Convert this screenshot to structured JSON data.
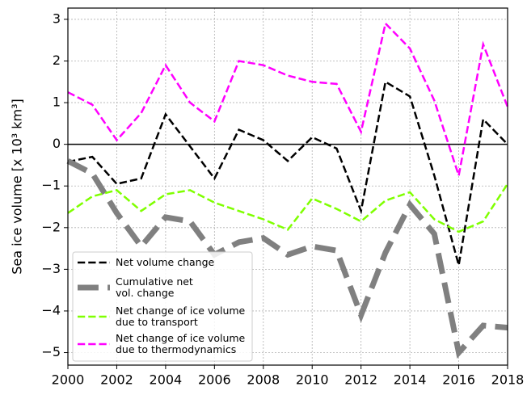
{
  "chart_data": {
    "type": "line",
    "y_label": "Sea ice volume [x 10³ km³]",
    "x": [
      2000,
      2001,
      2002,
      2003,
      2004,
      2005,
      2006,
      2007,
      2008,
      2009,
      2010,
      2011,
      2012,
      2013,
      2014,
      2015,
      2016,
      2017,
      2018
    ],
    "series": [
      {
        "name": "Net volume change",
        "color": "#000000",
        "linestyle": "dashed",
        "linewidth": 2.5,
        "values": [
          -0.42,
          -0.3,
          -0.95,
          -0.82,
          0.72,
          -0.05,
          -0.82,
          0.35,
          0.1,
          -0.4,
          0.17,
          -0.1,
          -1.6,
          1.5,
          1.15,
          -0.75,
          -2.9,
          0.6,
          0.0
        ]
      },
      {
        "name": "Cumulative net\nvol. change",
        "color": "#808080",
        "linestyle": "dashed",
        "linewidth": 7,
        "values": [
          -0.4,
          -0.7,
          -1.65,
          -2.45,
          -1.75,
          -1.85,
          -2.65,
          -2.35,
          -2.25,
          -2.65,
          -2.45,
          -2.55,
          -4.1,
          -2.6,
          -1.45,
          -2.15,
          -5.0,
          -4.35,
          -4.4
        ]
      },
      {
        "name": "Net change of ice volume\ndue to transport",
        "color": "#7fff00",
        "linestyle": "dashed",
        "linewidth": 2.5,
        "values": [
          -1.65,
          -1.25,
          -1.1,
          -1.6,
          -1.2,
          -1.1,
          -1.4,
          -1.6,
          -1.8,
          -2.05,
          -1.3,
          -1.55,
          -1.85,
          -1.35,
          -1.15,
          -1.8,
          -2.1,
          -1.85,
          -0.95
        ]
      },
      {
        "name": "Net change of ice volume\ndue to thermodynamics",
        "color": "#ff00ff",
        "linestyle": "dashed",
        "linewidth": 2.5,
        "values": [
          1.25,
          0.95,
          0.1,
          0.75,
          1.9,
          1.0,
          0.55,
          2.0,
          1.9,
          1.65,
          1.5,
          1.45,
          0.3,
          2.9,
          2.3,
          1.05,
          -0.75,
          2.4,
          0.9
        ]
      }
    ],
    "xlim": [
      2000,
      2018
    ],
    "xticks": [
      2000,
      2002,
      2004,
      2006,
      2008,
      2010,
      2012,
      2014,
      2016,
      2018
    ],
    "ylim": [
      -5.3,
      3.27
    ],
    "yticks": [
      {
        "value": -5,
        "label": "−5"
      },
      {
        "value": -4,
        "label": "−4"
      },
      {
        "value": -3,
        "label": "−3"
      },
      {
        "value": -2,
        "label": "−2"
      },
      {
        "value": -1,
        "label": "−1"
      },
      0,
      1,
      2,
      3
    ],
    "zero_line": true,
    "grid": true,
    "legend": "lower left"
  }
}
